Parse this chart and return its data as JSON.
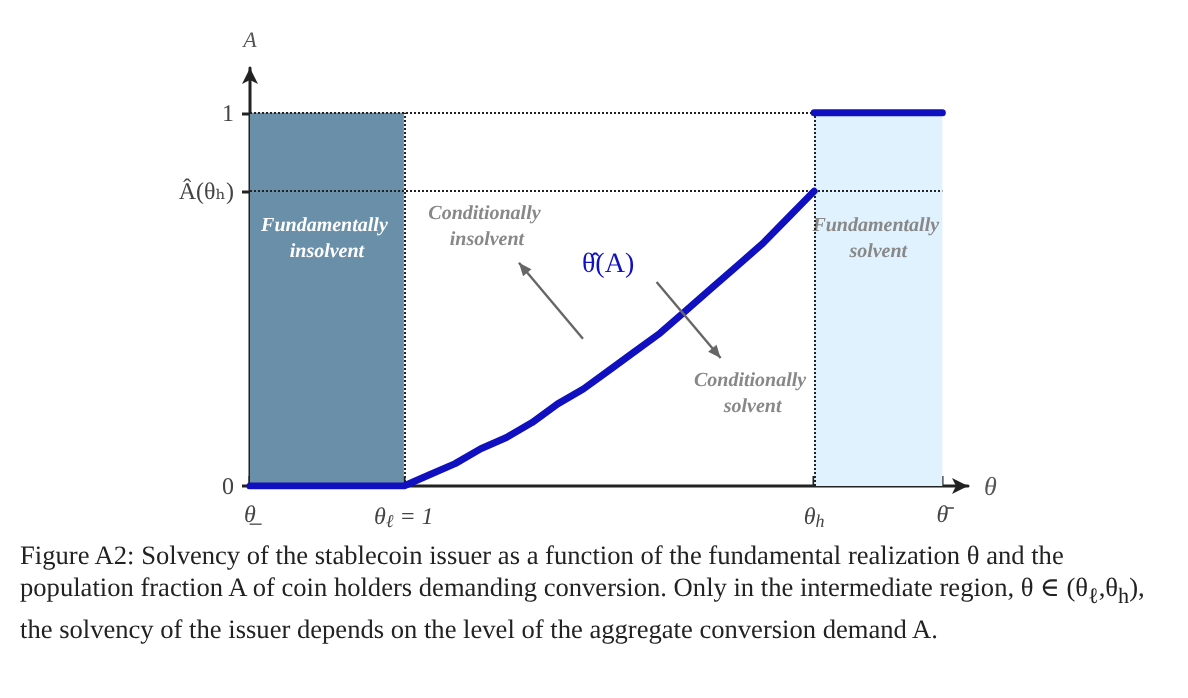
{
  "chart_data": {
    "type": "line",
    "xlabel": "θ",
    "ylabel": "A",
    "categories": [
      "θ̲",
      null,
      null,
      null,
      null,
      null,
      "θ$_{ℓ}$ = 1",
      null,
      null,
      null,
      null,
      null,
      null,
      null,
      null,
      null,
      null,
      null,
      null,
      null,
      null,
      null,
      "θ$_{h}$",
      null,
      null,
      null,
      null,
      "θ̄",
      null
    ],
    "ylim": [
      0,
      1.12
    ],
    "yticks": [
      0,
      {
        "value": 0.79,
        "label": "Â(θₕ)"
      },
      1
    ],
    "series": [
      {
        "name": "θ̂(A)",
        "color": "#1010c0",
        "values": [
          0,
          0,
          0,
          0,
          0,
          0,
          0,
          0.03,
          0.06,
          0.1,
          0.13,
          0.17,
          0.22,
          0.26,
          0.31,
          0.36,
          0.41,
          0.47,
          0.53,
          0.59,
          0.65,
          0.72,
          0.79,
          null,
          null,
          null,
          null,
          null,
          null
        ]
      },
      {
        "color": "#1010c0",
        "values": [
          null,
          null,
          null,
          null,
          null,
          null,
          null,
          null,
          null,
          null,
          null,
          null,
          null,
          null,
          null,
          null,
          null,
          null,
          null,
          null,
          null,
          null,
          1,
          1,
          1,
          1,
          1,
          1,
          null
        ]
      }
    ],
    "bands": [
      {
        "axis": "x",
        "from": "θ̲",
        "to": "θ$_{ℓ}$ = 1",
        "label": "Fundamentally insolvent",
        "color": "#6a8fa8"
      },
      {
        "axis": "x",
        "from": "θ$_{h}$",
        "to": "θ̄",
        "label": "Fundamentally solvent",
        "color": "#e0f2fd"
      }
    ],
    "ref_lines": [
      {
        "axis": "x",
        "value": "θ$_{ℓ}$ = 1",
        "line_style": "dotted"
      },
      {
        "axis": "x",
        "value": "θ$_{h}$",
        "line_style": "dotted"
      },
      {
        "axis": "y",
        "value": 1,
        "line_style": "dotted"
      },
      {
        "axis": "y",
        "value": 0.79,
        "line_style": "dotted"
      }
    ],
    "annotations": [
      "Conditionally insolvent",
      "Conditionally solvent",
      "Figure A2: Solvency of the stablecoin issuer as a function of the fundamental realization θ and the population fraction A of coin holders demanding conversion. Only in the intermediate region, θ ∈ (θ$_{ℓ}$,θ$_{h}$), the solvency of the issuer depends on the level of the aggregate conversion demand A."
    ],
    "grid": false,
    "legend": false,
    "marker": "none",
    "line_style": "solid"
  }
}
